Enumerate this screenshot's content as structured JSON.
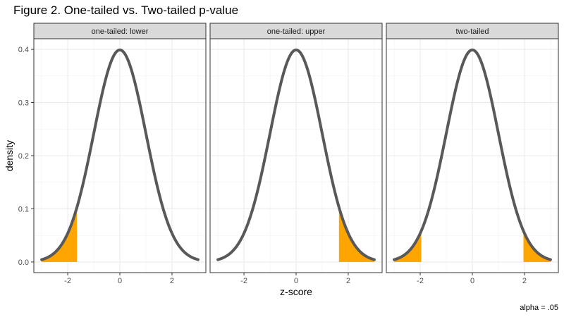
{
  "title": "Figure 2. One-tailed vs. Two-tailed p-value",
  "caption": "alpha = .05",
  "chart_data": {
    "type": "area",
    "title": "Figure 2. One-tailed vs. Two-tailed p-value",
    "xlabel": "z-score",
    "ylabel": "density",
    "xlim": [
      -3.3,
      3.3
    ],
    "ylim": [
      -0.02,
      0.42
    ],
    "x_ticks": [
      -2,
      0,
      2
    ],
    "x_tick_labels": [
      "-2",
      "0",
      "2"
    ],
    "y_ticks": [
      0.0,
      0.1,
      0.2,
      0.3,
      0.4
    ],
    "y_tick_labels": [
      "0.0",
      "0.1",
      "0.2",
      "0.3",
      "0.4"
    ],
    "grid": true,
    "curve": {
      "distribution": "standard normal",
      "x_range": [
        -3,
        3
      ],
      "color": "#595959"
    },
    "fill_color": "#FFA500",
    "panels": [
      {
        "label": "one-tailed: lower",
        "shaded": [
          [
            -3,
            -1.645
          ]
        ]
      },
      {
        "label": "one-tailed: upper",
        "shaded": [
          [
            1.645,
            3
          ]
        ]
      },
      {
        "label": "two-tailed",
        "shaded": [
          [
            -3,
            -1.96
          ],
          [
            1.96,
            3
          ]
        ]
      }
    ]
  }
}
